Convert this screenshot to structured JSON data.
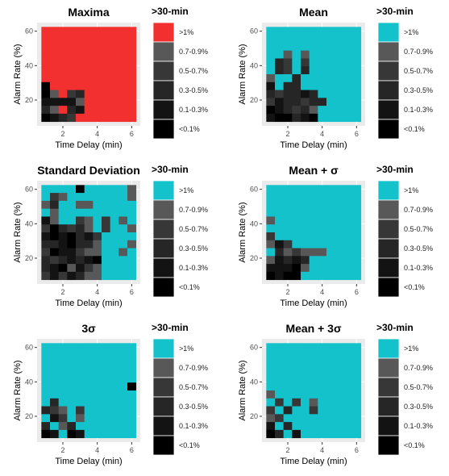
{
  "legend_title": ">30-min",
  "legend_labels": [
    ">1%",
    "0.7-0.9%",
    "0.5-0.7%",
    "0.3-0.5%",
    "0.1-0.3%",
    "<0.1%"
  ],
  "palette": [
    "#000000",
    "#131313",
    "#262626",
    "#373737",
    "#585858"
  ],
  "over_colors": {
    "red": "#f23030",
    "cyan": "#14c2cc"
  },
  "panel_bg": "#ebebeb",
  "chart_data": [
    {
      "type": "heatmap",
      "title": "Maxima",
      "over_color": "red",
      "xlabel": "Time Delay (min)",
      "ylabel": "Alarm Rate (%)",
      "xticks": [
        2,
        4,
        6
      ],
      "yticks": [
        20,
        40,
        60
      ],
      "xlim": [
        0.5,
        6.5
      ],
      "ylim": [
        5,
        65
      ],
      "x_range": [
        0.75,
        6.25
      ],
      "y_range": [
        7.5,
        62.5
      ],
      "legend_labels": [
        ">1%",
        "0.7-0.9%",
        "0.5-0.7%",
        "0.3-0.5%",
        "0.1-0.3%",
        "<0.1%"
      ],
      "grid": [
        "RRRRRRRRRRR",
        "RRRRRRRRRRR",
        "RRRRRRRRRRR",
        "RRRRRRRRRRR",
        "RRRRRRRRRRR",
        "RRRRRRRRRRR",
        "RRRRRRRRRRR",
        "0RRRRRRRRRR",
        "04R32RRRRRR",
        "11114RRRRRR",
        "24R21RRRRRR",
        "0123RRRRRRR"
      ]
    },
    {
      "type": "heatmap",
      "title": "Mean",
      "over_color": "cyan",
      "xlabel": "Time Delay (min)",
      "ylabel": "Alarm Rate (%)",
      "xticks": [
        2,
        4,
        6
      ],
      "yticks": [
        20,
        40,
        60
      ],
      "xlim": [
        0.5,
        6.5
      ],
      "ylim": [
        5,
        65
      ],
      "x_range": [
        0.75,
        6.25
      ],
      "y_range": [
        7.5,
        62.5
      ],
      "legend_labels": [
        ">1%",
        "0.7-0.9%",
        "0.5-0.7%",
        "0.3-0.5%",
        "0.1-0.3%",
        "<0.1%"
      ],
      "grid": [
        "CCCCCCCCCCC",
        "CCCCCCCCCCC",
        "CCCCCCCCCCC",
        "CC4C4CCCCCC",
        "C23C3CCCCCC",
        "C23C2CCCCCC",
        "4CC2CCCCCCC",
        "1C22CCCCCCC",
        "232212CCCCC",
        "3122322CCCC",
        "012324CCCCC",
        "100210CCCCC"
      ]
    },
    {
      "type": "heatmap",
      "title": "Standard Deviation",
      "over_color": "cyan",
      "xlabel": "Time Delay (min)",
      "ylabel": "Alarm Rate (%)",
      "xticks": [
        2,
        4,
        6
      ],
      "yticks": [
        20,
        40,
        60
      ],
      "xlim": [
        0.5,
        6.5
      ],
      "ylim": [
        5,
        65
      ],
      "x_range": [
        0.75,
        6.25
      ],
      "y_range": [
        7.5,
        62.5
      ],
      "legend_labels": [
        ">1%",
        "0.7-0.9%",
        "0.5-0.7%",
        "0.3-0.5%",
        "0.1-0.3%",
        "<0.1%"
      ],
      "grid": [
        "CCCC0CCCCC4",
        "C34CCCCCCC4",
        "42CC44CCCCC",
        "C4CCCCCCCCC",
        "14CC34C3C4C",
        "302324C3CC4",
        "1010213CCCC",
        "2210224CCC4",
        "3011344CC4C",
        "2321210CCCC",
        "2104134CCCC",
        "3131244CCCC"
      ]
    },
    {
      "type": "heatmap",
      "title": "Mean + σ",
      "over_color": "cyan",
      "xlabel": "Time Delay (min)",
      "ylabel": "Alarm Rate (%)",
      "xticks": [
        2,
        4,
        6
      ],
      "yticks": [
        20,
        40,
        60
      ],
      "xlim": [
        0.5,
        6.5
      ],
      "ylim": [
        5,
        65
      ],
      "x_range": [
        0.75,
        6.25
      ],
      "y_range": [
        7.5,
        62.5
      ],
      "legend_labels": [
        ">1%",
        "0.7-0.9%",
        "0.5-0.7%",
        "0.3-0.5%",
        "0.1-0.3%",
        "<0.1%"
      ],
      "grid": [
        "CCCCCCCCCCC",
        "CCCCCCCCCCC",
        "CCCCCCCCCCC",
        "CCCCCCCCCCC",
        "4CCCCCCCCCC",
        "CCCCCCCCCCC",
        "3CCCCCCCCCC",
        "413CCCCCCCC",
        "C243444CCCC",
        "41212CCCCCC",
        "11104CCCCCC",
        "0100CCCCCCC"
      ]
    },
    {
      "type": "heatmap",
      "title": "3σ",
      "over_color": "cyan",
      "xlabel": "Time Delay (min)",
      "ylabel": "Alarm Rate (%)",
      "xticks": [
        2,
        4,
        6
      ],
      "yticks": [
        20,
        40,
        60
      ],
      "xlim": [
        0.5,
        6.5
      ],
      "ylim": [
        5,
        65
      ],
      "x_range": [
        0.75,
        6.25
      ],
      "y_range": [
        7.5,
        62.5
      ],
      "legend_labels": [
        ">1%",
        "0.7-0.9%",
        "0.5-0.7%",
        "0.3-0.5%",
        "0.1-0.3%",
        "<0.1%"
      ],
      "grid": [
        "CCCCCCCCCCC",
        "CCCCCCCCCCC",
        "CCCCCCCCCCC",
        "CCCCCCCCCCC",
        "CCCCCCCCCCC",
        "CCCCCCCCCC0",
        "CCCCCCCCCCC",
        "C2CCCCCCCCC",
        "234C3CCCCCC",
        "C13C4CCCCCC",
        "2C42CCCCCCC",
        "01C01CCCCCC"
      ]
    },
    {
      "type": "heatmap",
      "title": "Mean + 3σ",
      "over_color": "cyan",
      "xlabel": "Time Delay (min)",
      "ylabel": "Alarm Rate (%)",
      "xticks": [
        2,
        4,
        6
      ],
      "yticks": [
        20,
        40,
        60
      ],
      "xlim": [
        0.5,
        6.5
      ],
      "ylim": [
        5,
        65
      ],
      "x_range": [
        0.75,
        6.25
      ],
      "y_range": [
        7.5,
        62.5
      ],
      "legend_labels": [
        ">1%",
        "0.7-0.9%",
        "0.5-0.7%",
        "0.3-0.5%",
        "0.1-0.3%",
        "<0.1%"
      ],
      "grid": [
        "CCCCCCCCCCC",
        "CCCCCCCCCCC",
        "CCCCCCCCCCC",
        "CCCCCCCCCCC",
        "CCCCCCCCCCC",
        "CCCCCCCCCCC",
        "4CCCCCCCCCC",
        "C3C3C4CCCCC",
        "3C2CC3CCCCC",
        "43CCCCCCCCC",
        "1C2CCCCCCCC",
        "02C1CCCCCCC"
      ]
    }
  ]
}
